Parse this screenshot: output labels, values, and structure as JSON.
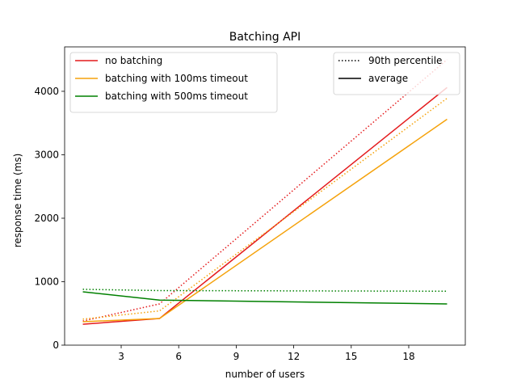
{
  "chart_data": {
    "type": "line",
    "title": "Batching API",
    "xlabel": "number of users",
    "ylabel": "response time (ms)",
    "xlim": [
      0.05,
      20.95
    ],
    "ylim": [
      0,
      4700
    ],
    "xticks": [
      3,
      6,
      9,
      12,
      15,
      18
    ],
    "yticks": [
      0,
      1000,
      2000,
      3000,
      4000
    ],
    "grid": false,
    "x": [
      1,
      5,
      20
    ],
    "series": [
      {
        "name": "no batching",
        "color": "#e41a1c",
        "stat": "90th percentile",
        "values": [
          380,
          650,
          4500
        ]
      },
      {
        "name": "no batching",
        "color": "#e41a1c",
        "stat": "average",
        "values": [
          330,
          420,
          4060
        ]
      },
      {
        "name": "batching with 100ms timeout",
        "color": "#f5a20b",
        "stat": "90th percentile",
        "values": [
          410,
          540,
          3890
        ]
      },
      {
        "name": "batching with 100ms timeout",
        "color": "#f5a20b",
        "stat": "average",
        "values": [
          370,
          420,
          3560
        ]
      },
      {
        "name": "batching with 500ms timeout",
        "color": "#008000",
        "stat": "90th percentile",
        "values": [
          880,
          860,
          850
        ]
      },
      {
        "name": "batching with 500ms timeout",
        "color": "#008000",
        "stat": "average",
        "values": [
          840,
          710,
          650
        ]
      }
    ],
    "legend_series": {
      "placement": "top-left",
      "entries": [
        {
          "label": "no batching",
          "color": "#e41a1c"
        },
        {
          "label": "batching with 100ms timeout",
          "color": "#f5a20b"
        },
        {
          "label": "batching with 500ms timeout",
          "color": "#008000"
        }
      ]
    },
    "legend_stats": {
      "placement": "top-right",
      "entries": [
        {
          "label": "90th percentile",
          "style": "dotted"
        },
        {
          "label": "average",
          "style": "solid"
        }
      ]
    }
  }
}
